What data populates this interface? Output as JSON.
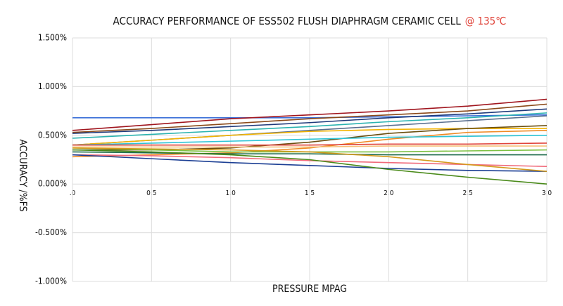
{
  "chart_data": {
    "type": "line",
    "title": [
      {
        "text": "ACCURACY  PERFORMANCE OF ESS502 FLUSH DIAPHRAGM CERAMIC CELL",
        "color": "#111111"
      },
      {
        "text": "@ 135℃",
        "color": "#e0443a"
      }
    ],
    "x_label": "PRESSURE MPAG",
    "y_label": "ACCURACY /%FS",
    "x": [
      0,
      0.5,
      1,
      1.5,
      2,
      2.5,
      3
    ],
    "xlim": [
      0,
      3
    ],
    "xticks": [
      {
        "value": 0,
        "label": ".0"
      },
      0.5,
      {
        "value": 1,
        "label": "1.0"
      },
      1.5,
      {
        "value": 2,
        "label": "2.0"
      },
      2.5,
      {
        "value": 3,
        "label": "3.0"
      }
    ],
    "ylim": [
      -1,
      1.5
    ],
    "yticks": [
      {
        "value": -1,
        "label": "-1.000%"
      },
      {
        "value": -0.5,
        "label": "-0.500%"
      },
      {
        "value": 0,
        "label": "0.000%"
      },
      {
        "value": 0.5,
        "label": "0.500%"
      },
      {
        "value": 1,
        "label": "1.000%"
      },
      {
        "value": 1.5,
        "label": "1.500%"
      }
    ],
    "grid": true,
    "series": [
      {
        "color": "#3a6fd8",
        "values": [
          0.68,
          0.68,
          0.68,
          0.68,
          0.69,
          0.7,
          0.71
        ]
      },
      {
        "color": "#a0151e",
        "values": [
          0.55,
          0.61,
          0.67,
          0.71,
          0.75,
          0.8,
          0.87
        ]
      },
      {
        "color": "#8b4a1a",
        "values": [
          0.53,
          0.57,
          0.62,
          0.67,
          0.71,
          0.75,
          0.82
        ]
      },
      {
        "color": "#1f3a7a",
        "values": [
          0.52,
          0.55,
          0.59,
          0.63,
          0.68,
          0.72,
          0.77
        ]
      },
      {
        "color": "#2bb3b0",
        "values": [
          0.47,
          0.51,
          0.55,
          0.59,
          0.64,
          0.68,
          0.73
        ]
      },
      {
        "color": "#5a6f8f",
        "values": [
          0.4,
          0.45,
          0.5,
          0.55,
          0.6,
          0.65,
          0.7
        ]
      },
      {
        "color": "#f4b400",
        "values": [
          0.4,
          0.45,
          0.5,
          0.54,
          0.56,
          0.57,
          0.57
        ]
      },
      {
        "color": "#6b4f10",
        "values": [
          0.35,
          0.35,
          0.37,
          0.43,
          0.52,
          0.57,
          0.6
        ]
      },
      {
        "color": "#f08a24",
        "values": [
          0.28,
          0.3,
          0.32,
          0.37,
          0.46,
          0.53,
          0.55
        ]
      },
      {
        "color": "#2ec4d6",
        "values": [
          0.4,
          0.42,
          0.44,
          0.46,
          0.48,
          0.49,
          0.5
        ]
      },
      {
        "color": "#e0443a",
        "values": [
          0.4,
          0.4,
          0.4,
          0.4,
          0.41,
          0.41,
          0.42
        ]
      },
      {
        "color": "#7cc142",
        "values": [
          0.37,
          0.35,
          0.33,
          0.33,
          0.33,
          0.34,
          0.35
        ]
      },
      {
        "color": "#1d6b4a",
        "values": [
          0.33,
          0.32,
          0.31,
          0.31,
          0.3,
          0.3,
          0.3
        ]
      },
      {
        "color": "#f06a7a",
        "values": [
          0.3,
          0.29,
          0.27,
          0.24,
          0.22,
          0.2,
          0.18
        ]
      },
      {
        "color": "#1c3f94",
        "values": [
          0.3,
          0.26,
          0.22,
          0.19,
          0.16,
          0.14,
          0.13
        ]
      },
      {
        "color": "#d49a1c",
        "values": [
          0.37,
          0.36,
          0.35,
          0.33,
          0.28,
          0.2,
          0.13
        ]
      },
      {
        "color": "#4a8a1a",
        "values": [
          0.35,
          0.33,
          0.3,
          0.25,
          0.15,
          0.07,
          0.0
        ]
      },
      {
        "color": "#f5c07a",
        "values": [
          0.38,
          0.38,
          0.38,
          0.38,
          0.39,
          0.39,
          0.39
        ]
      }
    ]
  }
}
